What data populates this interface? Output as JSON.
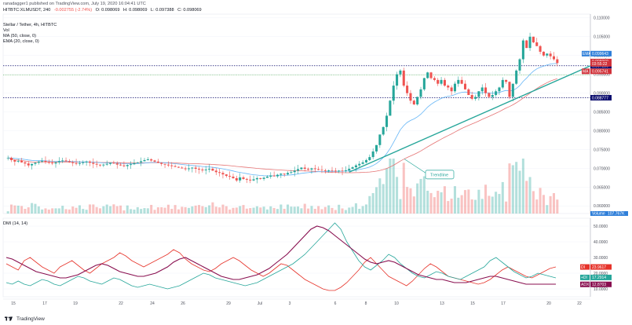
{
  "header": {
    "publish_line": "ranadagger1 published on TradingView.com, July 19, 2020 16:04:41 UTC",
    "symbol_line": "HITBTC:XLMUSDT, 240",
    "change": "-0.002755 (-2.74%)",
    "ohlc": [
      "O: 0.098069",
      "H: 0.098069",
      "L: 0.097388",
      "C: 0.098069"
    ],
    "pair_name": "Stellar / Tether, 4h, HITBTC",
    "indicators": [
      "Vol",
      "MA (50, close, 0)",
      "EMA (20, close, 0)"
    ]
  },
  "price_axis": {
    "ticks": [
      "0.110000",
      "0.105000",
      "0.100000",
      "0.095000",
      "0.090000",
      "0.085000",
      "0.080000",
      "0.075000",
      "0.070000",
      "0.065000",
      "0.060000"
    ],
    "tags": [
      {
        "text": "0.097280",
        "color": "#0c0e6e",
        "label": ""
      },
      {
        "text": "0.099643",
        "color": "#2f7fd9",
        "label": "EMA"
      },
      {
        "text": "0.098069",
        "color": "#d1323a",
        "label": ""
      },
      {
        "text": "03:55:22",
        "color": "#d1323a",
        "label": ""
      },
      {
        "text": "0.095741",
        "color": "#d1323a",
        "label": "MA"
      },
      {
        "text": "0.088777",
        "color": "#0c0e6e",
        "label": ""
      }
    ],
    "volume_tag": {
      "label": "Volume",
      "value": "107.767K"
    }
  },
  "annotation": {
    "text": "Trendline"
  },
  "dmi": {
    "title": "DMI (14, 14)",
    "ticks": [
      "50.0000",
      "40.0000",
      "30.0000",
      "20.0000",
      "10.0000"
    ],
    "tags": [
      {
        "label": "DI",
        "text": "23.9617",
        "color": "#e6332a"
      },
      {
        "label": "+DI",
        "text": "17.2914",
        "color": "#26a69a"
      },
      {
        "label": "ADX",
        "text": "12.8703",
        "color": "#880e4f"
      }
    ]
  },
  "time_axis": {
    "labels": [
      "15",
      "17",
      "19",
      "22",
      "24",
      "26",
      "29",
      "Jul",
      "3",
      "6",
      "8",
      "10",
      "13",
      "15",
      "17",
      "20",
      "22"
    ]
  },
  "footer": {
    "brand": "TradingView"
  },
  "colors": {
    "up": "#26a69a",
    "down": "#ef5350",
    "ma": "#e57373",
    "ema": "#64b5f6",
    "trendline": "#26a69a",
    "level": "#0c0e6e",
    "green_dotted": "#4caf50"
  },
  "chart_data": {
    "type": "candlestick",
    "title": "Stellar / Tether, 4h, HITBTC",
    "support_resistance": {
      "upper": 0.09728,
      "lower": 0.088777
    },
    "ylim": [
      0.058,
      0.111
    ],
    "closes": [
      0.0728,
      0.0722,
      0.0718,
      0.072,
      0.0716,
      0.0713,
      0.0708,
      0.0712,
      0.0715,
      0.0718,
      0.072,
      0.0717,
      0.0715,
      0.0713,
      0.0716,
      0.0719,
      0.0721,
      0.0719,
      0.0716,
      0.0714,
      0.0712,
      0.0714,
      0.0716,
      0.0718,
      0.0715,
      0.0712,
      0.071,
      0.0708,
      0.071,
      0.0712,
      0.0715,
      0.0713,
      0.071,
      0.0708,
      0.0706,
      0.0709,
      0.0711,
      0.0714,
      0.0716,
      0.0719,
      0.0722,
      0.0724,
      0.0721,
      0.0718,
      0.0715,
      0.0712,
      0.071,
      0.0708,
      0.0706,
      0.0704,
      0.0702,
      0.07,
      0.0698,
      0.07,
      0.0702,
      0.0699,
      0.0697,
      0.0695,
      0.0697,
      0.0699,
      0.0694,
      0.069,
      0.0688,
      0.0684,
      0.068,
      0.0678,
      0.0674,
      0.0668,
      0.0676,
      0.0672,
      0.067,
      0.0668,
      0.0671,
      0.0674,
      0.0672,
      0.0675,
      0.0678,
      0.0681,
      0.0679,
      0.0683,
      0.0686,
      0.0684,
      0.0688,
      0.069,
      0.0694,
      0.0698,
      0.0702,
      0.0699,
      0.0697,
      0.07,
      0.0698,
      0.0696,
      0.0695,
      0.0693,
      0.0695,
      0.0694,
      0.0692,
      0.0694,
      0.0693,
      0.0695,
      0.0699,
      0.0703,
      0.0708,
      0.0712,
      0.0716,
      0.0722,
      0.073,
      0.0745,
      0.0762,
      0.079,
      0.081,
      0.084,
      0.088,
      0.092,
      0.095,
      0.096,
      0.092,
      0.09,
      0.088,
      0.087,
      0.089,
      0.091,
      0.094,
      0.0955,
      0.094,
      0.0935,
      0.0925,
      0.0935,
      0.092,
      0.0915,
      0.0905,
      0.0925,
      0.0935,
      0.0925,
      0.091,
      0.0895,
      0.0885,
      0.089,
      0.0905,
      0.0915,
      0.09,
      0.089,
      0.0895,
      0.0905,
      0.0915,
      0.0935,
      0.093,
      0.089,
      0.0925,
      0.096,
      0.099,
      0.104,
      0.102,
      0.105,
      0.1035,
      0.1025,
      0.101,
      0.1,
      0.1005,
      0.0998,
      0.099,
      0.098
    ],
    "dmi_series": {
      "minus_di": [
        26,
        24,
        22,
        28,
        30,
        27,
        24,
        22,
        20,
        24,
        26,
        28,
        25,
        22,
        20,
        23,
        26,
        28,
        30,
        33,
        31,
        28,
        26,
        24,
        26,
        28,
        30,
        32,
        35,
        33,
        29,
        26,
        24,
        22,
        21,
        23,
        26,
        28,
        30,
        28,
        25,
        22,
        20,
        18,
        20,
        23,
        26,
        25,
        22,
        19,
        16,
        14,
        12,
        10,
        9,
        9,
        11,
        14,
        18,
        22,
        27,
        30,
        26,
        22,
        18,
        16,
        14,
        12,
        15,
        19,
        23,
        26,
        24,
        21,
        18,
        17,
        16,
        15,
        14,
        13,
        14,
        16,
        19,
        22,
        24,
        22,
        20,
        18,
        17,
        19,
        21,
        23,
        24
      ],
      "plus_di": [
        14,
        13,
        15,
        13,
        12,
        14,
        16,
        15,
        13,
        12,
        14,
        16,
        18,
        17,
        15,
        14,
        13,
        15,
        17,
        16,
        14,
        12,
        11,
        12,
        13,
        12,
        11,
        10,
        11,
        12,
        14,
        16,
        18,
        20,
        19,
        17,
        16,
        15,
        14,
        13,
        12,
        13,
        14,
        16,
        18,
        20,
        22,
        24,
        26,
        29,
        32,
        36,
        40,
        44,
        48,
        52,
        48,
        40,
        34,
        28,
        24,
        22,
        25,
        28,
        32,
        30,
        26,
        23,
        20,
        18,
        17,
        19,
        21,
        20,
        18,
        17,
        16,
        18,
        20,
        22,
        24,
        28,
        30,
        27,
        24,
        21,
        19,
        17,
        18,
        20,
        19,
        18,
        17
      ],
      "adx": [
        30,
        29,
        27,
        25,
        23,
        21,
        20,
        19,
        18,
        17,
        17,
        18,
        19,
        21,
        23,
        25,
        26,
        25,
        23,
        21,
        20,
        19,
        18,
        18,
        19,
        20,
        22,
        24,
        27,
        29,
        30,
        28,
        26,
        24,
        22,
        20,
        18,
        17,
        16,
        16,
        17,
        18,
        19,
        21,
        23,
        26,
        29,
        32,
        36,
        40,
        44,
        48,
        50,
        49,
        47,
        44,
        41,
        38,
        35,
        32,
        29,
        27,
        26,
        27,
        28,
        27,
        25,
        23,
        21,
        19,
        18,
        17,
        16,
        16,
        15,
        14,
        14,
        14,
        15,
        16,
        17,
        18,
        18,
        17,
        16,
        15,
        14,
        13,
        13,
        13,
        13,
        13,
        13
      ]
    },
    "dmi_ylim": [
      5,
      55
    ]
  }
}
